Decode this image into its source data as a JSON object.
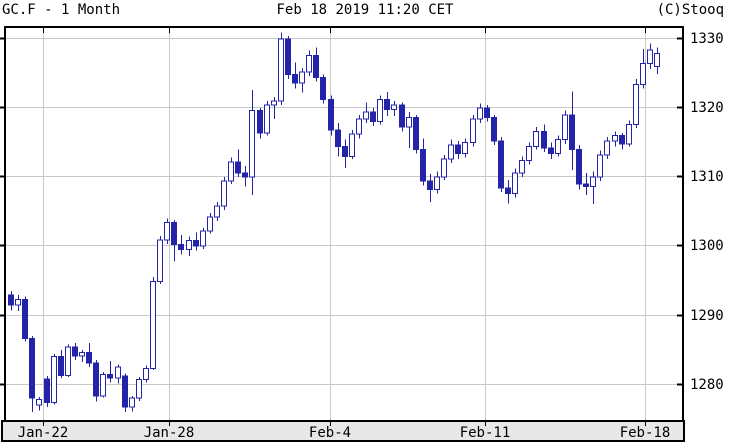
{
  "header": {
    "symbol_and_period": "GC.F - 1 Month",
    "timestamp": "Feb 18 2019 11:20 CET",
    "copyright": "(C)Stooq"
  },
  "chart_data": {
    "type": "candlestick",
    "title": "GC.F - 1 Month",
    "symbol": "GC.F",
    "period": "1 Month",
    "as_of": "Feb 18 2019 11:20 CET",
    "source_label": "(C)Stooq",
    "grid": true,
    "legend": "none",
    "y_axis": {
      "side": "right",
      "ticks": [
        1330,
        1320,
        1310,
        1300,
        1290,
        1280
      ],
      "range": [
        1274.6,
        1331.6
      ]
    },
    "x_axis": {
      "ticks": [
        {
          "label": "Jan-22",
          "i": 4.5
        },
        {
          "label": "Jan-28",
          "i": 22.25
        },
        {
          "label": "Feb-4",
          "i": 44.9
        },
        {
          "label": "Feb-11",
          "i": 66.8
        },
        {
          "label": "Feb-18",
          "i": 89.3
        }
      ]
    },
    "colors": {
      "candle": "#2424a8",
      "up_fill": "#ffffff",
      "grid": "#c8c8c8",
      "axis": "#000000",
      "strip_bg": "#e7e7e7",
      "background": "#ffffff"
    },
    "candles_ohlc": [
      [
        1292.8,
        1293.4,
        1290.6,
        1291.4
      ],
      [
        1291.4,
        1292.8,
        1290.5,
        1292.2
      ],
      [
        1292.2,
        1292.6,
        1286.1,
        1286.5
      ],
      [
        1286.5,
        1286.9,
        1275.9,
        1277.9
      ],
      [
        1276.9,
        1278.1,
        1276.1,
        1277.7
      ],
      [
        1280.7,
        1281.1,
        1276.6,
        1277.3
      ],
      [
        1277.3,
        1284.3,
        1277.0,
        1283.9
      ],
      [
        1283.9,
        1284.9,
        1280.8,
        1281.2
      ],
      [
        1281.2,
        1285.7,
        1281.0,
        1285.3
      ],
      [
        1285.3,
        1285.9,
        1283.4,
        1284.0
      ],
      [
        1284.0,
        1284.9,
        1283.1,
        1284.5
      ],
      [
        1284.5,
        1285.9,
        1282.4,
        1283.0
      ],
      [
        1283.0,
        1283.4,
        1277.4,
        1278.2
      ],
      [
        1278.2,
        1281.7,
        1278.0,
        1281.3
      ],
      [
        1281.3,
        1283.3,
        1280.2,
        1280.8
      ],
      [
        1280.8,
        1282.8,
        1280.0,
        1282.4
      ],
      [
        1281.1,
        1281.5,
        1275.9,
        1276.6
      ],
      [
        1276.6,
        1278.2,
        1276.0,
        1277.9
      ],
      [
        1277.9,
        1281.0,
        1277.5,
        1280.6
      ],
      [
        1280.6,
        1282.6,
        1280.2,
        1282.2
      ],
      [
        1282.2,
        1295.4,
        1282.0,
        1294.8
      ],
      [
        1294.8,
        1301.4,
        1294.4,
        1300.8
      ],
      [
        1300.8,
        1303.9,
        1300.2,
        1303.3
      ],
      [
        1303.3,
        1303.7,
        1297.7,
        1300.1
      ],
      [
        1300.1,
        1301.5,
        1298.7,
        1299.4
      ],
      [
        1299.4,
        1301.3,
        1298.5,
        1300.7
      ],
      [
        1300.7,
        1301.9,
        1299.3,
        1299.9
      ],
      [
        1299.9,
        1302.5,
        1299.5,
        1302.1
      ],
      [
        1302.1,
        1304.7,
        1301.7,
        1304.1
      ],
      [
        1304.1,
        1306.3,
        1303.5,
        1305.7
      ],
      [
        1305.7,
        1309.9,
        1305.1,
        1309.3
      ],
      [
        1309.3,
        1312.7,
        1308.9,
        1312.1
      ],
      [
        1312.1,
        1313.9,
        1309.9,
        1310.5
      ],
      [
        1310.5,
        1311.5,
        1308.5,
        1309.9
      ],
      [
        1309.9,
        1322.5,
        1307.3,
        1319.5
      ],
      [
        1319.5,
        1319.9,
        1315.5,
        1316.3
      ],
      [
        1316.3,
        1320.9,
        1315.9,
        1320.3
      ],
      [
        1320.3,
        1321.5,
        1318.3,
        1320.9
      ],
      [
        1320.9,
        1330.8,
        1320.3,
        1329.9
      ],
      [
        1329.9,
        1330.3,
        1324.1,
        1324.7
      ],
      [
        1324.7,
        1326.5,
        1322.7,
        1323.5
      ],
      [
        1323.5,
        1325.7,
        1322.1,
        1325.1
      ],
      [
        1325.1,
        1328.2,
        1324.5,
        1327.5
      ],
      [
        1327.5,
        1328.6,
        1323.7,
        1324.3
      ],
      [
        1324.3,
        1324.7,
        1320.5,
        1321.1
      ],
      [
        1321.1,
        1321.7,
        1315.9,
        1316.7
      ],
      [
        1316.7,
        1317.7,
        1312.9,
        1314.3
      ],
      [
        1314.3,
        1315.3,
        1311.2,
        1312.9
      ],
      [
        1312.9,
        1316.7,
        1312.5,
        1316.1
      ],
      [
        1316.1,
        1318.9,
        1315.5,
        1318.3
      ],
      [
        1318.3,
        1320.7,
        1317.7,
        1319.3
      ],
      [
        1319.3,
        1319.9,
        1317.3,
        1317.9
      ],
      [
        1317.9,
        1321.7,
        1317.5,
        1321.1
      ],
      [
        1321.1,
        1322.2,
        1318.7,
        1319.7
      ],
      [
        1319.7,
        1320.9,
        1318.7,
        1320.3
      ],
      [
        1320.3,
        1320.7,
        1316.5,
        1317.1
      ],
      [
        1317.1,
        1319.3,
        1314.1,
        1318.5
      ],
      [
        1318.5,
        1318.9,
        1313.3,
        1313.9
      ],
      [
        1313.9,
        1315.5,
        1308.7,
        1309.3
      ],
      [
        1309.3,
        1310.3,
        1306.3,
        1308.1
      ],
      [
        1308.1,
        1310.7,
        1307.5,
        1309.9
      ],
      [
        1309.9,
        1313.1,
        1309.5,
        1312.5
      ],
      [
        1312.5,
        1315.3,
        1311.9,
        1314.5
      ],
      [
        1314.5,
        1315.1,
        1312.5,
        1313.3
      ],
      [
        1313.3,
        1315.5,
        1312.7,
        1314.9
      ],
      [
        1314.9,
        1318.9,
        1314.3,
        1318.3
      ],
      [
        1318.3,
        1320.5,
        1317.7,
        1319.9
      ],
      [
        1319.9,
        1320.3,
        1317.9,
        1318.5
      ],
      [
        1318.5,
        1318.9,
        1314.5,
        1315.1
      ],
      [
        1315.1,
        1315.7,
        1307.7,
        1308.3
      ],
      [
        1308.3,
        1309.5,
        1306.1,
        1307.5
      ],
      [
        1307.5,
        1311.1,
        1306.9,
        1310.5
      ],
      [
        1310.5,
        1312.9,
        1309.9,
        1312.3
      ],
      [
        1312.3,
        1314.9,
        1311.7,
        1314.3
      ],
      [
        1314.3,
        1317.1,
        1313.9,
        1316.5
      ],
      [
        1316.5,
        1317.5,
        1313.5,
        1314.1
      ],
      [
        1314.1,
        1314.9,
        1312.5,
        1313.3
      ],
      [
        1313.3,
        1315.9,
        1312.9,
        1315.3
      ],
      [
        1315.3,
        1319.5,
        1314.7,
        1318.9
      ],
      [
        1318.9,
        1322.3,
        1310.9,
        1313.9
      ],
      [
        1313.9,
        1314.5,
        1308.1,
        1308.9
      ],
      [
        1308.9,
        1310.5,
        1307.3,
        1308.5
      ],
      [
        1308.5,
        1310.7,
        1306.0,
        1309.9
      ],
      [
        1309.9,
        1313.7,
        1309.3,
        1313.1
      ],
      [
        1313.1,
        1315.7,
        1312.5,
        1315.1
      ],
      [
        1315.1,
        1316.5,
        1314.3,
        1315.9
      ],
      [
        1315.9,
        1316.3,
        1313.9,
        1314.7
      ],
      [
        1314.7,
        1318.1,
        1314.3,
        1317.5
      ],
      [
        1317.5,
        1324.1,
        1317.0,
        1323.3
      ],
      [
        1323.3,
        1328.4,
        1322.7,
        1326.3
      ],
      [
        1326.3,
        1329.2,
        1325.5,
        1328.3
      ],
      [
        1325.9,
        1328.6,
        1324.8,
        1327.8
      ]
    ]
  }
}
